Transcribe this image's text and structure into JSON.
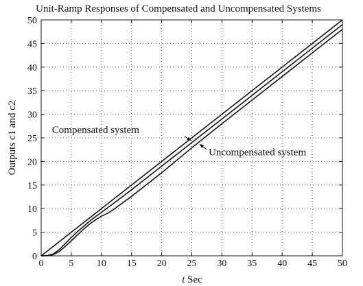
{
  "chart_data": {
    "type": "line",
    "title": "Unit-Ramp Responses of Compensated and Uncompensated Systems",
    "xlabel_italic": "t",
    "xlabel_rest": " Sec",
    "ylabel": "Outputs c1 and c2",
    "xlim": [
      0,
      50
    ],
    "ylim": [
      0,
      50
    ],
    "xticks": [
      0,
      5,
      10,
      15,
      20,
      25,
      30,
      35,
      40,
      45,
      50
    ],
    "yticks": [
      0,
      5,
      10,
      15,
      20,
      25,
      30,
      35,
      40,
      45,
      50
    ],
    "grid": "dotted",
    "series": [
      {
        "name": "",
        "x": [
          0,
          50
        ],
        "y": [
          0,
          50
        ],
        "color": "#111111"
      },
      {
        "name": "Compensated system",
        "x": [
          0,
          1,
          2,
          3,
          4,
          5,
          6,
          7,
          8,
          9,
          10,
          12,
          15,
          20,
          25,
          30,
          35,
          40,
          45,
          50
        ],
        "y": [
          0,
          0.05,
          0.4,
          1.3,
          2.6,
          3.9,
          5.1,
          6.2,
          7.3,
          8.3,
          9.2,
          11.1,
          14.0,
          19.0,
          24.0,
          29.0,
          34.0,
          39.0,
          44.0,
          49.0
        ],
        "color": "#111111"
      },
      {
        "name": "Uncompensated system",
        "x": [
          0,
          1,
          2,
          3,
          4,
          5,
          6,
          7,
          8,
          9,
          10,
          11,
          12,
          15,
          20,
          25,
          30,
          35,
          40,
          45,
          50
        ],
        "y": [
          0,
          0.02,
          0.25,
          0.9,
          2.0,
          3.2,
          4.4,
          5.6,
          6.7,
          7.6,
          8.4,
          9.0,
          9.8,
          12.6,
          17.6,
          22.9,
          28.0,
          33.0,
          38.0,
          43.0,
          48.0
        ],
        "color": "#111111"
      }
    ],
    "annotations": [
      {
        "text": "Compensated system",
        "label_x": 1.8,
        "label_y": 26.0,
        "arrow_from": [
          23.8,
          25.3
        ],
        "arrow_to": [
          24.9,
          24.4
        ]
      },
      {
        "text": "Uncompensated system",
        "label_x": 27.8,
        "label_y": 21.3,
        "arrow_from": [
          27.5,
          22.5
        ],
        "arrow_to": [
          26.3,
          23.7
        ]
      }
    ]
  }
}
